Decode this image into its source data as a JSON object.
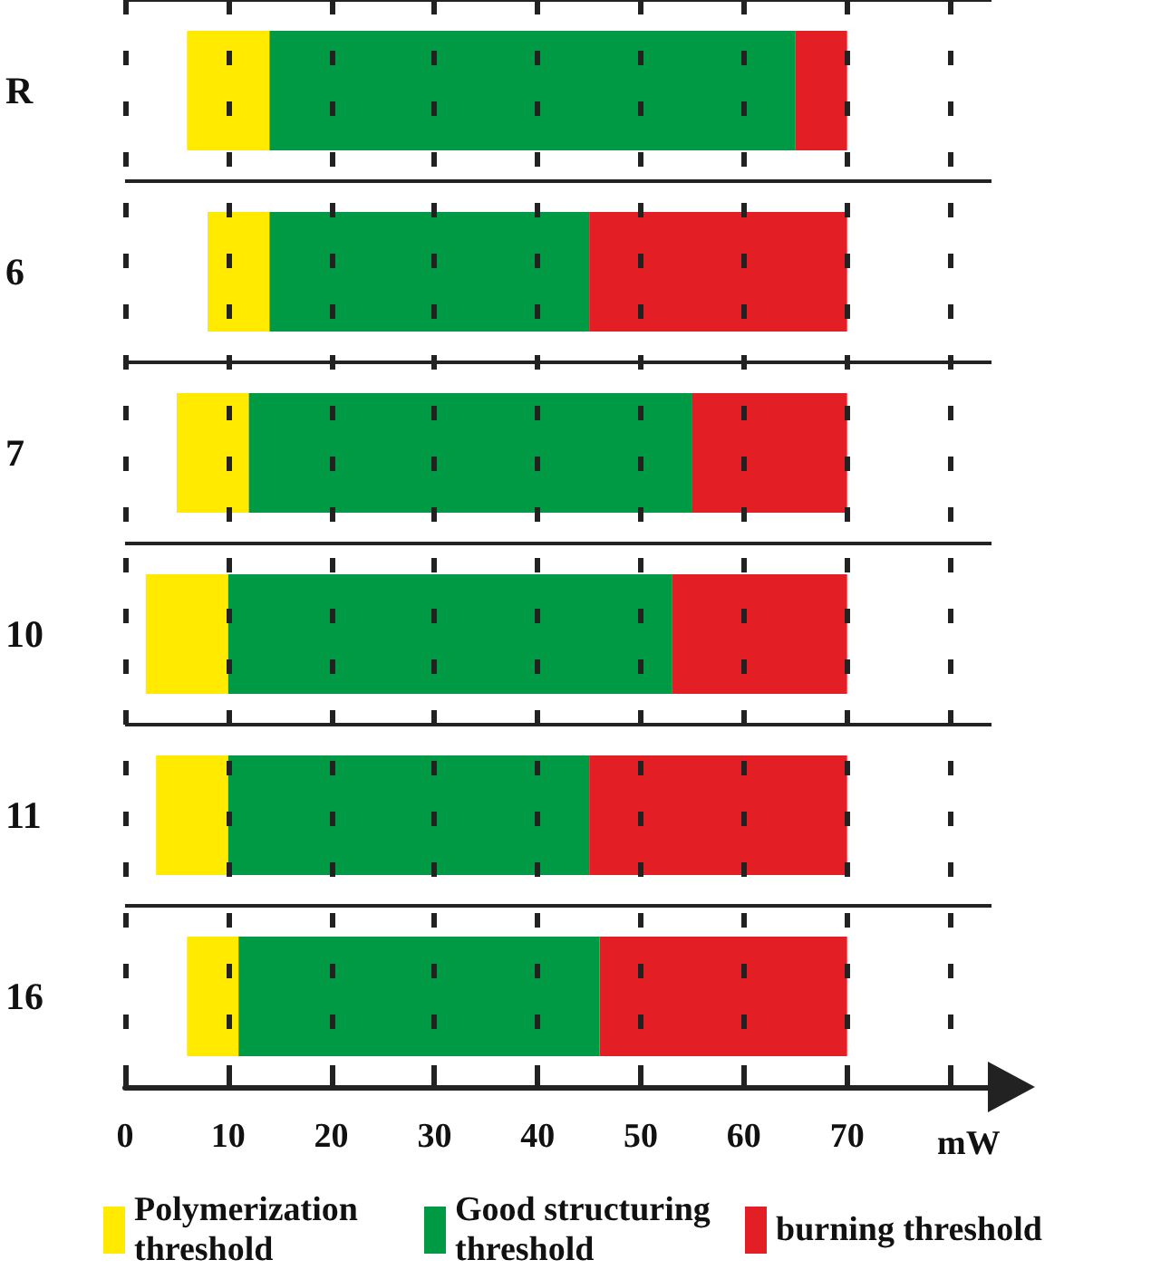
{
  "chart_data": {
    "type": "bar",
    "orientation": "horizontal",
    "stacked": true,
    "categories": [
      "R",
      "6",
      "7",
      "10",
      "11",
      "16"
    ],
    "series": [
      {
        "name": "Polymerization threshold",
        "color": "#ffea00",
        "base": [
          6,
          8,
          5,
          2,
          3,
          6
        ],
        "values": [
          8,
          6,
          7,
          8,
          7,
          5
        ]
      },
      {
        "name": "Good structuring threshold",
        "color": "#009944",
        "values": [
          51,
          31,
          43,
          43,
          35,
          35
        ]
      },
      {
        "name": "burning threshold",
        "color": "#e31e24",
        "values": [
          5,
          25,
          15,
          17,
          25,
          24
        ]
      }
    ],
    "xlabel": "mW",
    "xlim": [
      0,
      84
    ],
    "xticks": [
      0,
      10,
      20,
      30,
      40,
      50,
      60,
      70,
      {
        "value": 80,
        "label": null
      }
    ],
    "grid": true,
    "legend": "bottom"
  }
}
